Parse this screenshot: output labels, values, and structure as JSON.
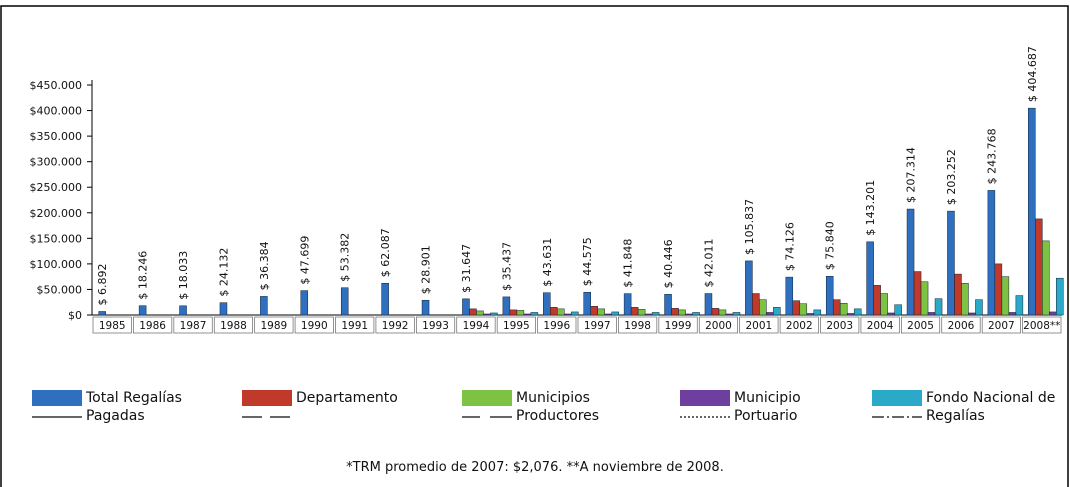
{
  "chart_data": {
    "type": "bar",
    "categories": [
      "1985",
      "1986",
      "1987",
      "1988",
      "1989",
      "1990",
      "1991",
      "1992",
      "1993",
      "1994",
      "1995",
      "1996",
      "1997",
      "1998",
      "1999",
      "2000",
      "2001",
      "2002",
      "2003",
      "2004",
      "2005",
      "2006",
      "2007",
      "2008**"
    ],
    "series": [
      {
        "name": "Total Regalías Pagadas",
        "color": "#2f6fbf",
        "values": [
          6892,
          18246,
          18033,
          24132,
          36384,
          47699,
          53382,
          62087,
          28901,
          31647,
          35437,
          43631,
          44575,
          41848,
          40446,
          42011,
          105837,
          74126,
          75840,
          143201,
          207314,
          203252,
          243768,
          404687
        ],
        "value_labels": [
          "$ 6.892",
          "$ 18.246",
          "$ 18.033",
          "$ 24.132",
          "$ 36.384",
          "$ 47.699",
          "$ 53.382",
          "$ 62.087",
          "$ 28.901",
          "$ 31.647",
          "$ 35.437",
          "$ 43.631",
          "$ 44.575",
          "$ 41.848",
          "$ 40.446",
          "$ 42.011",
          "$ 105.837",
          "$ 74.126",
          "$ 75.840",
          "$ 143.201",
          "$ 207.314",
          "$ 203.252",
          "$ 243.768",
          "$ 404.687"
        ]
      },
      {
        "name": "Departamento",
        "color": "#c0392b",
        "values": [
          null,
          null,
          null,
          null,
          null,
          null,
          null,
          null,
          null,
          12000,
          10000,
          15000,
          17000,
          15000,
          13000,
          13000,
          42000,
          28000,
          30000,
          58000,
          85000,
          80000,
          100000,
          188000
        ]
      },
      {
        "name": "Municipios Productores",
        "color": "#7dc242",
        "values": [
          null,
          null,
          null,
          null,
          null,
          null,
          null,
          null,
          null,
          8000,
          9000,
          12000,
          12000,
          11000,
          10000,
          10000,
          30000,
          22000,
          23000,
          42000,
          65000,
          62000,
          75000,
          145000
        ]
      },
      {
        "name": "Municipio Portuario",
        "color": "#6f3fa0",
        "values": [
          null,
          null,
          null,
          null,
          null,
          null,
          null,
          null,
          null,
          2000,
          2000,
          2000,
          2000,
          2000,
          2000,
          2000,
          5000,
          3000,
          3000,
          4000,
          5000,
          4000,
          5000,
          6000
        ]
      },
      {
        "name": "Fondo Nacional de Regalías",
        "color": "#2aa9c9",
        "values": [
          null,
          null,
          null,
          null,
          null,
          null,
          null,
          null,
          null,
          4000,
          5000,
          6000,
          6000,
          5000,
          5000,
          5000,
          15000,
          10000,
          12000,
          20000,
          32000,
          30000,
          38000,
          72000
        ]
      }
    ],
    "ylim": [
      0,
      450000
    ],
    "yticks": [
      {
        "value": 0,
        "label": "$0"
      },
      {
        "value": 50000,
        "label": "$50.000"
      },
      {
        "value": 100000,
        "label": "$100.000"
      },
      {
        "value": 150000,
        "label": "$150.000"
      },
      {
        "value": 200000,
        "label": "$200.000"
      },
      {
        "value": 250000,
        "label": "$250.000"
      },
      {
        "value": 300000,
        "label": "$300.000"
      },
      {
        "value": 350000,
        "label": "$350.000"
      },
      {
        "value": 400000,
        "label": "$400.000"
      },
      {
        "value": 450000,
        "label": "$450.000"
      }
    ],
    "footnote": "*TRM promedio de 2007: $2,076. **A noviembre de 2008."
  }
}
